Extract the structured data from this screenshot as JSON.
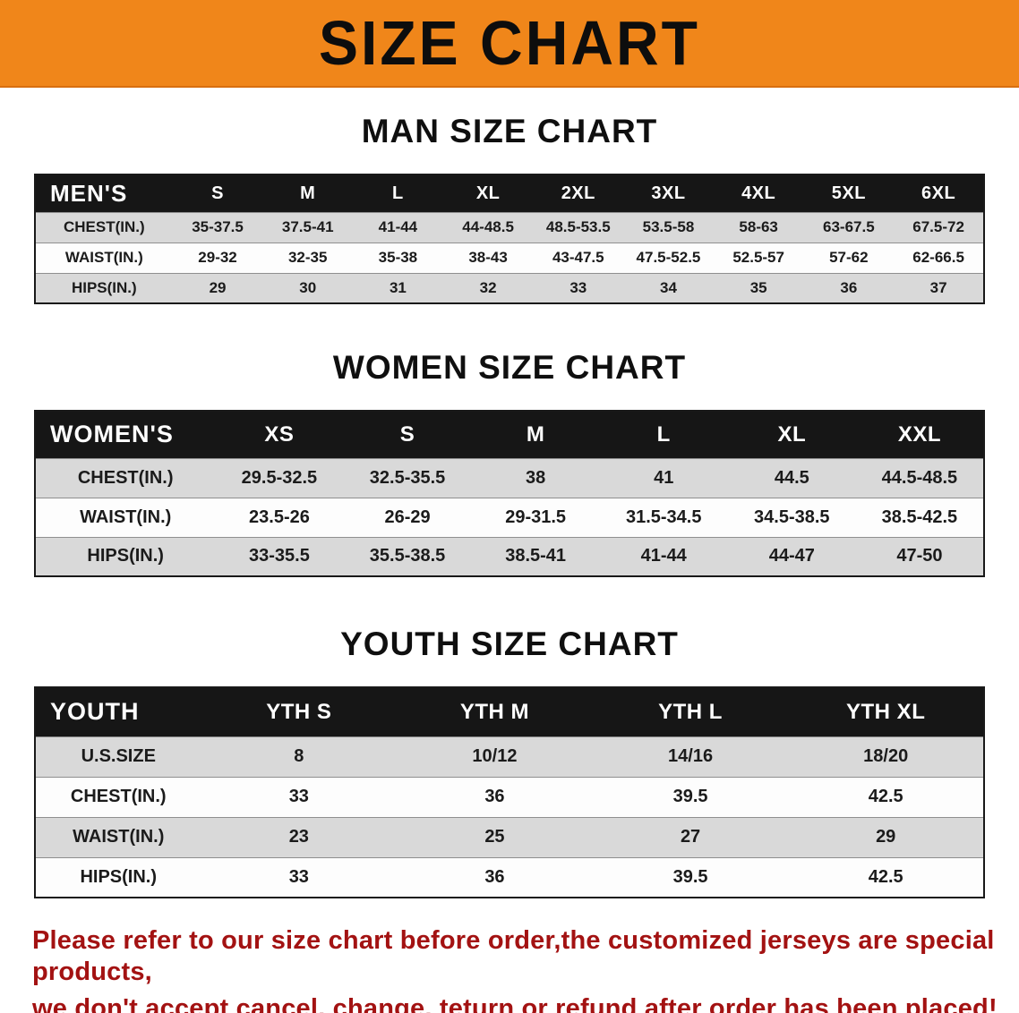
{
  "banner": {
    "title": "SIZE CHART"
  },
  "sections": [
    {
      "heading": "MAN SIZE CHART",
      "table": {
        "header": [
          "MEN'S",
          "S",
          "M",
          "L",
          "XL",
          "2XL",
          "3XL",
          "4XL",
          "5XL",
          "6XL"
        ],
        "rows": [
          [
            "CHEST(IN.)",
            "35-37.5",
            "37.5-41",
            "41-44",
            "44-48.5",
            "48.5-53.5",
            "53.5-58",
            "58-63",
            "63-67.5",
            "67.5-72"
          ],
          [
            "WAIST(IN.)",
            "29-32",
            "32-35",
            "35-38",
            "38-43",
            "43-47.5",
            "47.5-52.5",
            "52.5-57",
            "57-62",
            "62-66.5"
          ],
          [
            "HIPS(IN.)",
            "29",
            "30",
            "31",
            "32",
            "33",
            "34",
            "35",
            "36",
            "37"
          ]
        ]
      }
    },
    {
      "heading": "WOMEN SIZE CHART",
      "table": {
        "header": [
          "WOMEN'S",
          "XS",
          "S",
          "M",
          "L",
          "XL",
          "XXL"
        ],
        "rows": [
          [
            "CHEST(IN.)",
            "29.5-32.5",
            "32.5-35.5",
            "38",
            "41",
            "44.5",
            "44.5-48.5"
          ],
          [
            "WAIST(IN.)",
            "23.5-26",
            "26-29",
            "29-31.5",
            "31.5-34.5",
            "34.5-38.5",
            "38.5-42.5"
          ],
          [
            "HIPS(IN.)",
            "33-35.5",
            "35.5-38.5",
            "38.5-41",
            "41-44",
            "44-47",
            "47-50"
          ]
        ]
      }
    },
    {
      "heading": "YOUTH SIZE CHART",
      "table": {
        "header": [
          "YOUTH",
          "YTH S",
          "YTH M",
          "YTH L",
          "YTH XL"
        ],
        "rows": [
          [
            "U.S.SIZE",
            "8",
            "10/12",
            "14/16",
            "18/20"
          ],
          [
            "CHEST(IN.)",
            "33",
            "36",
            "39.5",
            "42.5"
          ],
          [
            "WAIST(IN.)",
            "23",
            "25",
            "27",
            "29"
          ],
          [
            "HIPS(IN.)",
            "33",
            "36",
            "39.5",
            "42.5"
          ]
        ]
      }
    }
  ],
  "footer": {
    "line1": "Please refer to our size chart before order,the customized jerseys are special products,",
    "line2": "we don't accept cancel, change, teturn or refund after order has been placed!"
  },
  "colors": {
    "banner_bg": "#F0861A",
    "header_bar": "#161616",
    "row_alt": "#D9D9D9",
    "note_red": "#A31212"
  }
}
